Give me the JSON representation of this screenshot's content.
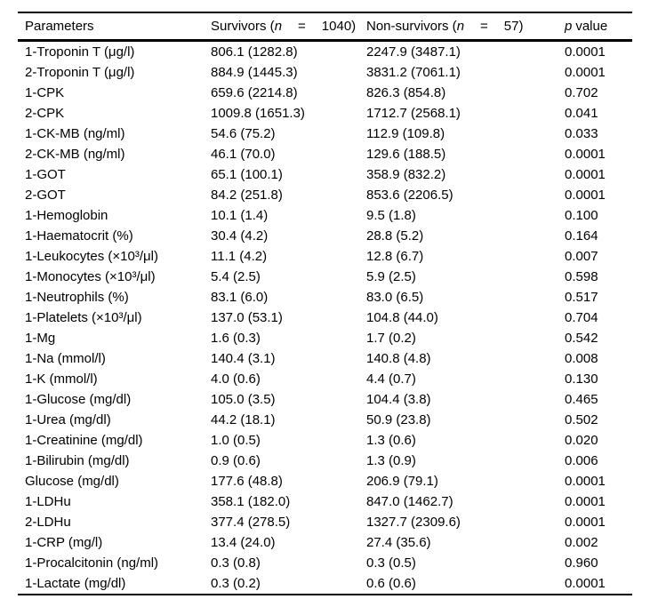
{
  "table": {
    "header": {
      "parameters": "Parameters",
      "survivors": {
        "pre": "Survivors (",
        "n": "n",
        "eq": "=",
        "count": "1040)"
      },
      "nonsurvivors": {
        "pre": "Non-survivors (",
        "n": "n",
        "eq": "=",
        "count": "57)"
      },
      "pvalue": {
        "p": "p",
        "rest": "value"
      }
    },
    "rows": [
      {
        "param": "1-Troponin T (μg/l)",
        "survivors": "806.1 (1282.8)",
        "nonsurvivors": "2247.9 (3487.1)",
        "p": "0.0001"
      },
      {
        "param": "2-Troponin T (μg/l)",
        "survivors": "884.9 (1445.3)",
        "nonsurvivors": "3831.2 (7061.1)",
        "p": "0.0001"
      },
      {
        "param": "1-CPK",
        "survivors": "659.6 (2214.8)",
        "nonsurvivors": "826.3 (854.8)",
        "p": "0.702"
      },
      {
        "param": "2-CPK",
        "survivors": "1009.8 (1651.3)",
        "nonsurvivors": "1712.7 (2568.1)",
        "p": "0.041"
      },
      {
        "param": "1-CK-MB (ng/ml)",
        "survivors": "54.6 (75.2)",
        "nonsurvivors": "112.9 (109.8)",
        "p": "0.033"
      },
      {
        "param": "2-CK-MB (ng/ml)",
        "survivors": "46.1 (70.0)",
        "nonsurvivors": "129.6 (188.5)",
        "p": "0.0001"
      },
      {
        "param": "1-GOT",
        "survivors": "65.1 (100.1)",
        "nonsurvivors": "358.9 (832.2)",
        "p": "0.0001"
      },
      {
        "param": "2-GOT",
        "survivors": "84.2 (251.8)",
        "nonsurvivors": "853.6 (2206.5)",
        "p": "0.0001"
      },
      {
        "param": "1-Hemoglobin",
        "survivors": "10.1 (1.4)",
        "nonsurvivors": "9.5 (1.8)",
        "p": "0.100"
      },
      {
        "param": "1-Haematocrit (%)",
        "survivors": "30.4 (4.2)",
        "nonsurvivors": "28.8 (5.2)",
        "p": "0.164"
      },
      {
        "param": "1-Leukocytes (×10³/μl)",
        "survivors": "11.1 (4.2)",
        "nonsurvivors": "12.8 (6.7)",
        "p": "0.007"
      },
      {
        "param": "1-Monocytes (×10³/μl)",
        "survivors": "5.4 (2.5)",
        "nonsurvivors": "5.9 (2.5)",
        "p": "0.598"
      },
      {
        "param": "1-Neutrophils (%)",
        "survivors": "83.1 (6.0)",
        "nonsurvivors": "83.0 (6.5)",
        "p": "0.517"
      },
      {
        "param": "1-Platelets (×10³/μl)",
        "survivors": "137.0 (53.1)",
        "nonsurvivors": "104.8 (44.0)",
        "p": "0.704"
      },
      {
        "param": "1-Mg",
        "survivors": "1.6 (0.3)",
        "nonsurvivors": "1.7 (0.2)",
        "p": "0.542"
      },
      {
        "param": "1-Na (mmol/l)",
        "survivors": "140.4 (3.1)",
        "nonsurvivors": "140.8 (4.8)",
        "p": "0.008"
      },
      {
        "param": "1-K (mmol/l)",
        "survivors": "4.0 (0.6)",
        "nonsurvivors": "4.4 (0.7)",
        "p": "0.130"
      },
      {
        "param": "1-Glucose (mg/dl)",
        "survivors": "105.0 (3.5)",
        "nonsurvivors": "104.4 (3.8)",
        "p": "0.465"
      },
      {
        "param": "1-Urea (mg/dl)",
        "survivors": "44.2 (18.1)",
        "nonsurvivors": "50.9 (23.8)",
        "p": "0.502"
      },
      {
        "param": "1-Creatinine (mg/dl)",
        "survivors": "1.0 (0.5)",
        "nonsurvivors": "1.3 (0.6)",
        "p": "0.020"
      },
      {
        "param": "1-Bilirubin (mg/dl)",
        "survivors": "0.9 (0.6)",
        "nonsurvivors": "1.3 (0.9)",
        "p": "0.006"
      },
      {
        "param": "Glucose (mg/dl)",
        "survivors": "177.6 (48.8)",
        "nonsurvivors": "206.9 (79.1)",
        "p": "0.0001"
      },
      {
        "param": "1-LDHu",
        "survivors": "358.1 (182.0)",
        "nonsurvivors": "847.0 (1462.7)",
        "p": "0.0001"
      },
      {
        "param": "2-LDHu",
        "survivors": "377.4 (278.5)",
        "nonsurvivors": "1327.7 (2309.6)",
        "p": "0.0001"
      },
      {
        "param": "1-CRP (mg/l)",
        "survivors": "13.4 (24.0)",
        "nonsurvivors": "27.4 (35.6)",
        "p": "0.002"
      },
      {
        "param": "1-Procalcitonin (ng/ml)",
        "survivors": "0.3 (0.8)",
        "nonsurvivors": "0.3 (0.5)",
        "p": "0.960"
      },
      {
        "param": "1-Lactate (mg/dl)",
        "survivors": "0.3 (0.2)",
        "nonsurvivors": "0.6 (0.6)",
        "p": "0.0001"
      }
    ]
  }
}
